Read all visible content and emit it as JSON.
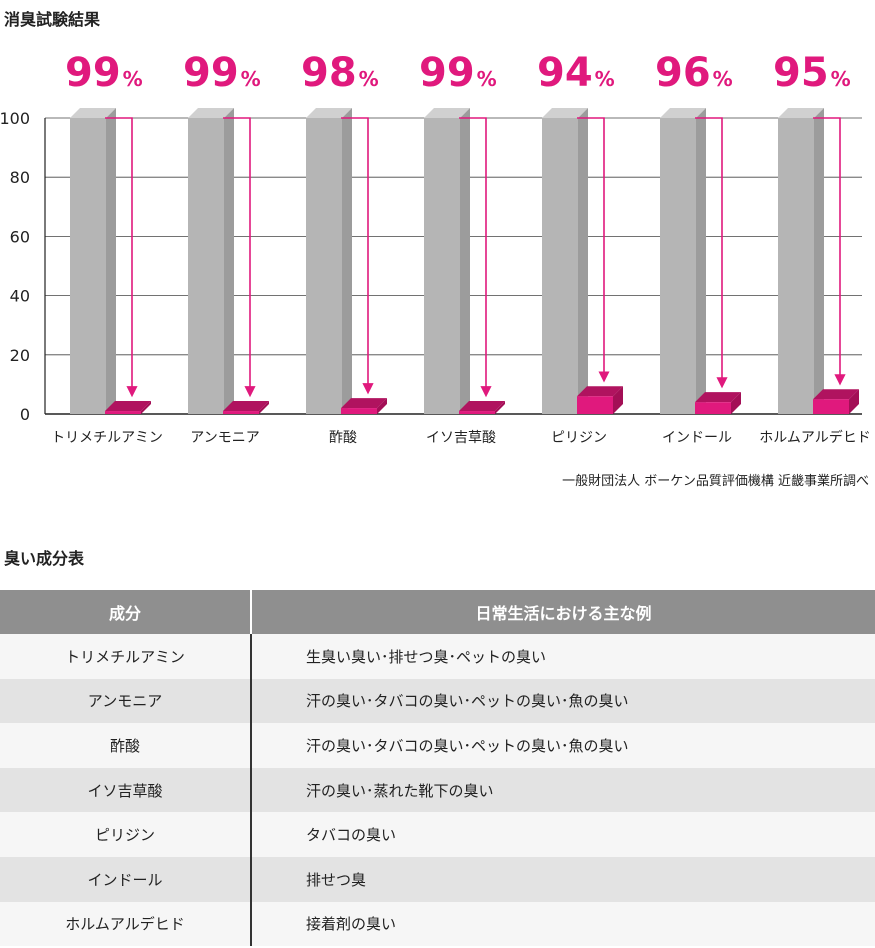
{
  "chart_title": "消臭試験結果",
  "table_title": "臭い成分表",
  "source": "一般財団法人 ボーケン品質評価機構 近畿事業所調べ",
  "colors": {
    "accent": "#e0197d",
    "bar_gray": "#b5b5b5",
    "header_gray": "#8f8f8f"
  },
  "chart_data": {
    "type": "bar",
    "title": "消臭試験結果",
    "xlabel": "",
    "ylabel": "",
    "ylim": [
      0,
      100
    ],
    "yticks": [
      0,
      20,
      40,
      60,
      80,
      100
    ],
    "grid": true,
    "categories": [
      "トリメチルアミン",
      "アンモニア",
      "酢酸",
      "イソ吉草酸",
      "ピリジン",
      "インドール",
      "ホルムアルデヒド"
    ],
    "series": [
      {
        "values": [
          100,
          100,
          100,
          100,
          100,
          100,
          100
        ]
      },
      {
        "values": [
          1,
          1,
          2,
          1,
          6,
          4,
          5
        ]
      }
    ],
    "reduction_labels": [
      "99",
      "99",
      "98",
      "99",
      "94",
      "96",
      "95"
    ],
    "percent_sign": "%"
  },
  "table": {
    "headers": [
      "成分",
      "日常生活における主な例"
    ],
    "rows": [
      [
        "トリメチルアミン",
        "生臭い臭い･排せつ臭･ペットの臭い"
      ],
      [
        "アンモニア",
        "汗の臭い･タバコの臭い･ペットの臭い･魚の臭い"
      ],
      [
        "酢酸",
        "汗の臭い･タバコの臭い･ペットの臭い･魚の臭い"
      ],
      [
        "イソ吉草酸",
        "汗の臭い･蒸れた靴下の臭い"
      ],
      [
        "ピリジン",
        "タバコの臭い"
      ],
      [
        "インドール",
        "排せつ臭"
      ],
      [
        "ホルムアルデヒド",
        "接着剤の臭い"
      ]
    ]
  }
}
